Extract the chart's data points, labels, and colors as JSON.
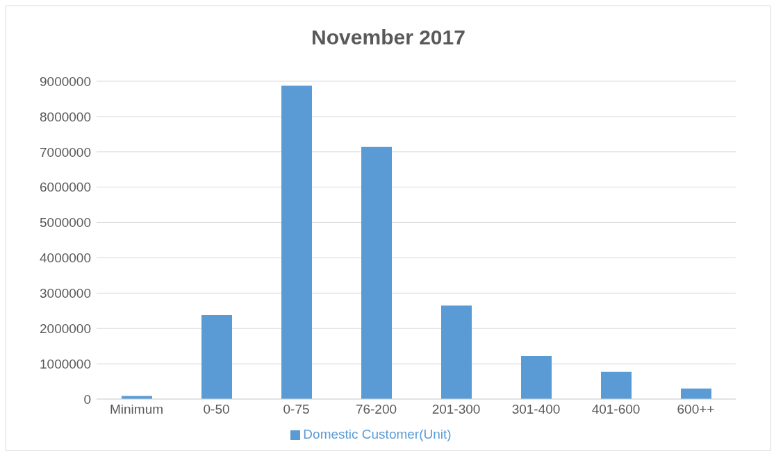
{
  "chart_data": {
    "type": "bar",
    "title": "November 2017",
    "categories": [
      "Minimum",
      "0-50",
      "0-75",
      "76-200",
      "201-300",
      "301-400",
      "401-600",
      "600++"
    ],
    "series": [
      {
        "name": "Domestic Customer(Unit)",
        "color": "#5b9bd5",
        "values": [
          90000,
          2380000,
          8870000,
          7140000,
          2650000,
          1220000,
          770000,
          300000
        ]
      }
    ],
    "ylim": [
      0,
      9000000
    ],
    "yticks": [
      0,
      1000000,
      2000000,
      3000000,
      4000000,
      5000000,
      6000000,
      7000000,
      8000000,
      9000000
    ],
    "grid": "y",
    "legend": "bottom"
  }
}
